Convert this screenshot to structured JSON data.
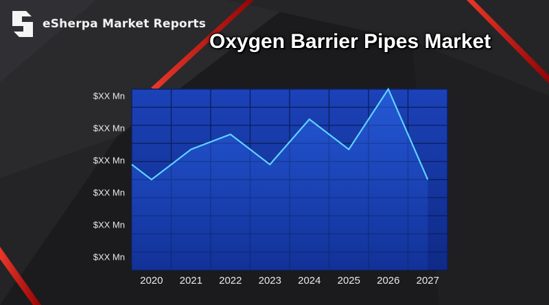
{
  "brand": {
    "name": "eSherpa Market Reports",
    "logo_icon": "esherpa-s-logo-icon"
  },
  "colors": {
    "accent_red": "#e21b1b",
    "plot_bg_top": "#1c42b8",
    "plot_bg_bottom": "#0f2a86",
    "line": "#5fd4ff",
    "grid": "#0a1f63"
  },
  "chart_data": {
    "type": "area",
    "title": "Oxygen Barrier Pipes Market",
    "categories": [
      "2020",
      "2021",
      "2022",
      "2023",
      "2024",
      "2025",
      "2026",
      "2027"
    ],
    "x": [
      0,
      0.5,
      1.5,
      2.5,
      3.5,
      4.5,
      5.5,
      6.5,
      7.5
    ],
    "values": [
      3.5,
      3.0,
      4.0,
      4.5,
      3.5,
      5.0,
      4.0,
      6.0,
      3.0
    ],
    "y_tick_labels": [
      "$XX Mn",
      "$XX Mn",
      "$XX Mn",
      "$XX Mn",
      "$XX Mn",
      "$XX Mn"
    ],
    "ylim": [
      0,
      6
    ],
    "grid": true,
    "legend": "none"
  }
}
